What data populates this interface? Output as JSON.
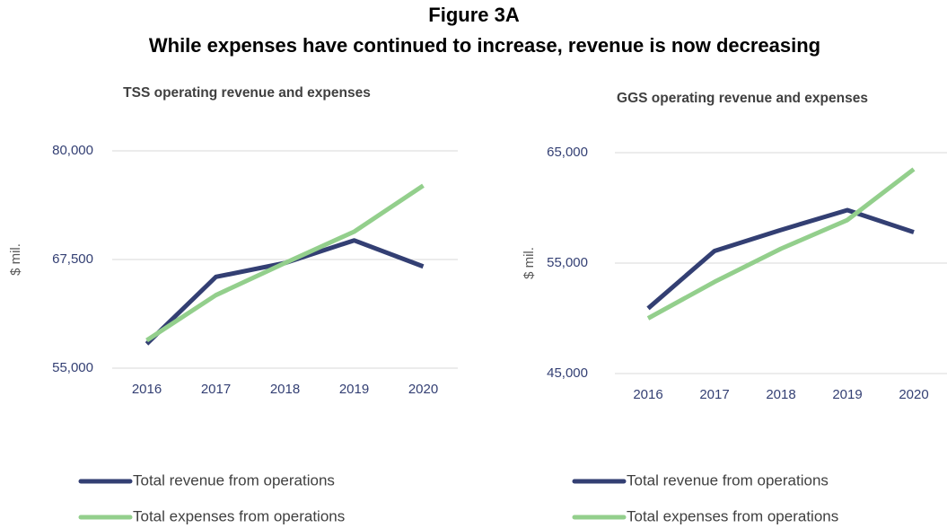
{
  "figure": {
    "title": "Figure 3A",
    "subtitle": "While expenses have continued to increase, revenue is now decreasing"
  },
  "chart_data": [
    {
      "type": "line",
      "title": "TSS operating revenue and expenses",
      "ylabel": "$ mil.",
      "categories": [
        "2016",
        "2017",
        "2018",
        "2019",
        "2020"
      ],
      "series": [
        {
          "name": "Total revenue from operations",
          "color": "#333f73",
          "values": [
            57800,
            65500,
            67100,
            69700,
            66700
          ]
        },
        {
          "name": "Total expenses from operations",
          "color": "#93cf8c",
          "values": [
            58200,
            63400,
            67100,
            70700,
            76000
          ]
        }
      ],
      "ylim": [
        55000,
        80000
      ],
      "yticks": [
        {
          "value": 55000,
          "label": "55,000"
        },
        {
          "value": 67500,
          "label": "67,500"
        },
        {
          "value": 80000,
          "label": "80,000"
        }
      ],
      "grid": true,
      "legend": "bottom"
    },
    {
      "type": "line",
      "title": "GGS operating revenue and expenses",
      "ylabel": "$ mil.",
      "categories": [
        "2016",
        "2017",
        "2018",
        "2019",
        "2020"
      ],
      "series": [
        {
          "name": "Total revenue from operations",
          "color": "#333f73",
          "values": [
            50900,
            56100,
            58000,
            59800,
            57800
          ]
        },
        {
          "name": "Total expenses from operations",
          "color": "#93cf8c",
          "values": [
            50000,
            53300,
            56300,
            58900,
            63500
          ]
        }
      ],
      "ylim": [
        45000,
        65000
      ],
      "yticks": [
        {
          "value": 45000,
          "label": "45,000"
        },
        {
          "value": 55000,
          "label": "55,000"
        },
        {
          "value": 65000,
          "label": "65,000"
        }
      ],
      "grid": true,
      "legend": "bottom"
    }
  ]
}
